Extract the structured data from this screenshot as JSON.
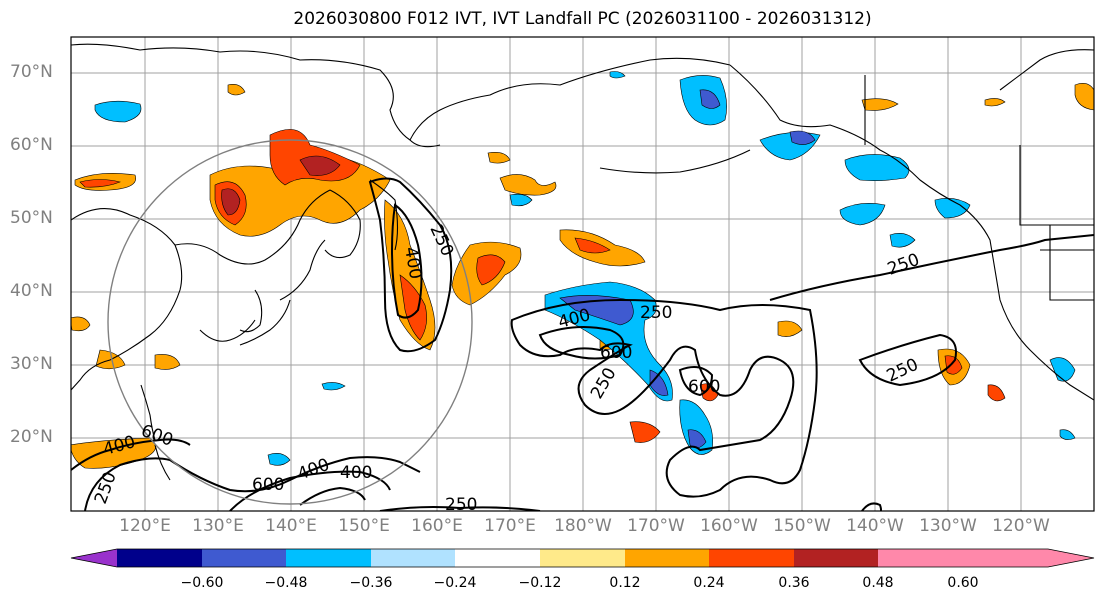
{
  "title": "2026030800 F012 IVT, IVT Landfall PC (2026031100 - 2026031312)",
  "lat_labels": [
    "70°N",
    "60°N",
    "50°N",
    "40°N",
    "30°N",
    "20°N"
  ],
  "lon_labels": [
    "120°E",
    "130°E",
    "140°E",
    "150°E",
    "160°E",
    "170°E",
    "180°W",
    "170°W",
    "160°W",
    "150°W",
    "140°W",
    "130°W",
    "120°W"
  ],
  "colorbar": {
    "colors": [
      "#9932CC",
      "#00008B",
      "#3F5AD0",
      "#00BFFF",
      "#B0E2FF",
      "#FFFFFF",
      "#FFEA8A",
      "#FFA500",
      "#FF4500",
      "#B22222",
      "#FF88AA"
    ],
    "ticks": [
      "−0.60",
      "−0.48",
      "−0.36",
      "−0.24",
      "−0.12",
      "0.12",
      "0.24",
      "0.36",
      "0.48",
      "0.60"
    ]
  },
  "contour_labels": [
    "250",
    "250",
    "250",
    "250",
    "250",
    "250",
    "400",
    "400",
    "400",
    "400",
    "400",
    "600",
    "600",
    "600",
    "600",
    "250"
  ]
}
